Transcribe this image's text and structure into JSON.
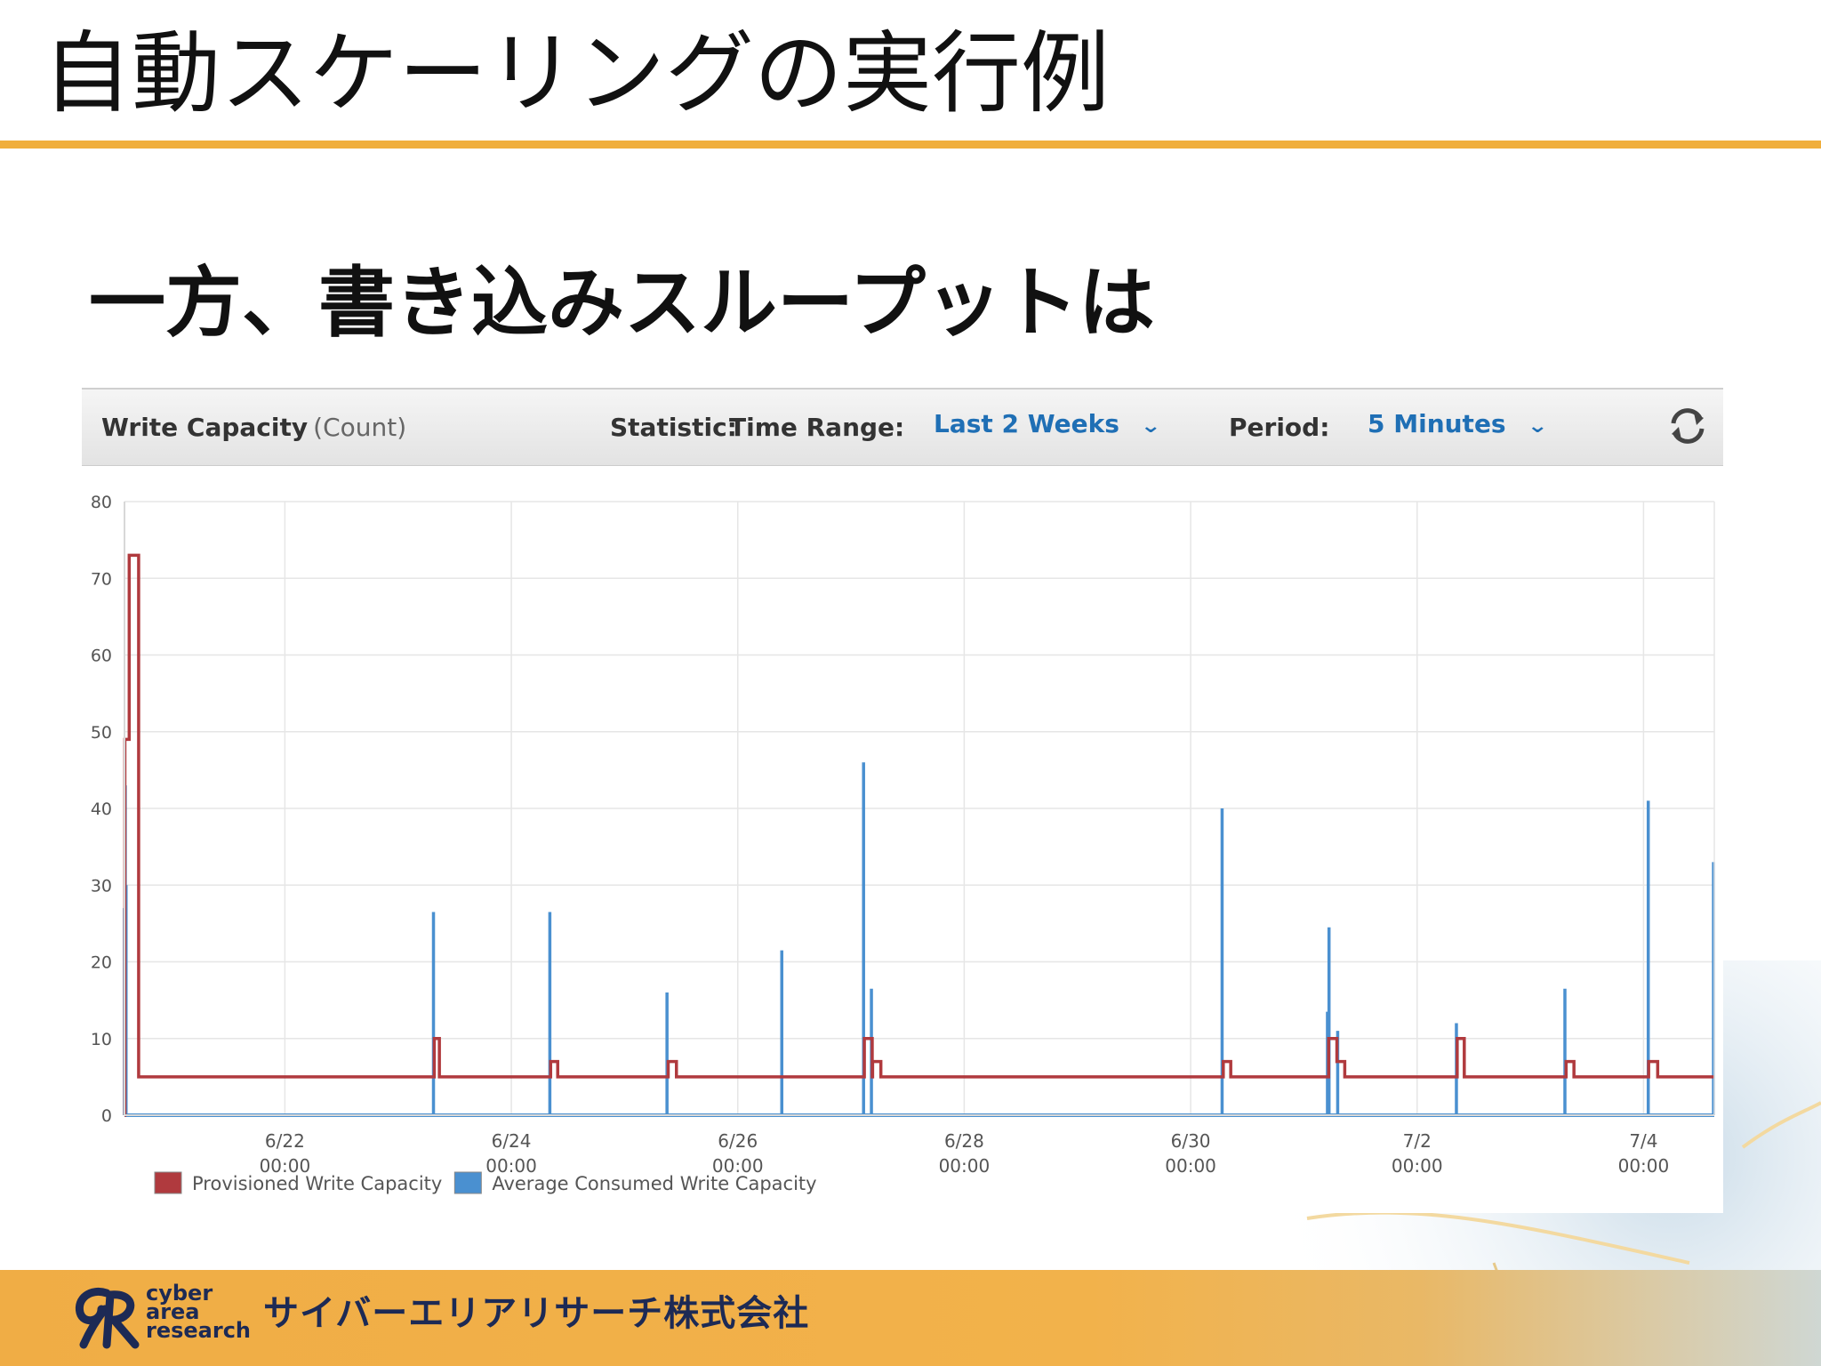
{
  "slide": {
    "title": "自動スケーリングの実行例",
    "subtitle": "一方、書き込みスループットは"
  },
  "panel": {
    "metric_name": "Write Capacity",
    "metric_unit": "(Count)",
    "statistic_label": "Statistic:",
    "time_range_label": "Time Range:",
    "time_range_value": "Last 2 Weeks",
    "period_label": "Period:",
    "period_value": "5 Minutes",
    "refresh_icon": "refresh-icon",
    "caret_icon": "chevron-down-icon"
  },
  "chart_data": {
    "type": "line",
    "line_shape": "step",
    "title": "Write Capacity (Count)",
    "xlabel": "",
    "ylabel": "",
    "ylim": [
      0,
      80
    ],
    "yticks": [
      0,
      10,
      20,
      30,
      40,
      50,
      60,
      70,
      80
    ],
    "xlim": [
      "2017-06-20 14:00",
      "2017-07-04 15:00"
    ],
    "xticks": [
      {
        "at": "2017-06-22 00:00",
        "line1": "6/22",
        "line2": "00:00"
      },
      {
        "at": "2017-06-24 00:00",
        "line1": "6/24",
        "line2": "00:00"
      },
      {
        "at": "2017-06-26 00:00",
        "line1": "6/26",
        "line2": "00:00"
      },
      {
        "at": "2017-06-28 00:00",
        "line1": "6/28",
        "line2": "00:00"
      },
      {
        "at": "2017-06-30 00:00",
        "line1": "6/30",
        "line2": "00:00"
      },
      {
        "at": "2017-07-02 00:00",
        "line1": "7/2",
        "line2": "00:00"
      },
      {
        "at": "2017-07-04 00:00",
        "line1": "7/4",
        "line2": "00:00"
      }
    ],
    "grid": true,
    "legend": "bottom-left",
    "series": [
      {
        "name": "Provisioned Write Capacity",
        "color": "#b03a3e",
        "points": [
          [
            "2017-06-20 14:00",
            0
          ],
          [
            "2017-06-20 14:05",
            49
          ],
          [
            "2017-06-20 15:00",
            73
          ],
          [
            "2017-06-20 17:00",
            5
          ],
          [
            "2017-06-23 07:35",
            5
          ],
          [
            "2017-06-23 07:40",
            10
          ],
          [
            "2017-06-23 08:45",
            5
          ],
          [
            "2017-06-24 08:15",
            5
          ],
          [
            "2017-06-24 08:20",
            7
          ],
          [
            "2017-06-24 09:50",
            5
          ],
          [
            "2017-06-25 09:10",
            5
          ],
          [
            "2017-06-25 09:15",
            7
          ],
          [
            "2017-06-25 11:00",
            5
          ],
          [
            "2017-06-27 02:45",
            5
          ],
          [
            "2017-06-27 02:50",
            10
          ],
          [
            "2017-06-27 04:30",
            5
          ],
          [
            "2017-06-27 04:35",
            7
          ],
          [
            "2017-06-27 06:20",
            5
          ],
          [
            "2017-06-30 06:50",
            5
          ],
          [
            "2017-06-30 06:55",
            7
          ],
          [
            "2017-06-30 08:30",
            5
          ],
          [
            "2017-07-01 05:10",
            5
          ],
          [
            "2017-07-01 05:15",
            10
          ],
          [
            "2017-07-01 07:00",
            7
          ],
          [
            "2017-07-01 08:40",
            5
          ],
          [
            "2017-07-02 08:25",
            5
          ],
          [
            "2017-07-02 08:30",
            10
          ],
          [
            "2017-07-02 10:00",
            5
          ],
          [
            "2017-07-03 07:30",
            5
          ],
          [
            "2017-07-03 07:35",
            7
          ],
          [
            "2017-07-03 09:15",
            5
          ],
          [
            "2017-07-04 01:00",
            5
          ],
          [
            "2017-07-04 01:05",
            7
          ],
          [
            "2017-07-04 03:00",
            5
          ],
          [
            "2017-07-04 15:00",
            5
          ]
        ]
      },
      {
        "name": "Average Consumed Write Capacity",
        "color": "#4a90d0",
        "baseline": 0,
        "spikes": [
          [
            "2017-06-20 14:00",
            27
          ],
          [
            "2017-06-20 14:10",
            43
          ],
          [
            "2017-06-20 14:20",
            30
          ],
          [
            "2017-06-23 07:30",
            26.5
          ],
          [
            "2017-06-24 08:10",
            26.5
          ],
          [
            "2017-06-25 09:00",
            16
          ],
          [
            "2017-06-26 09:20",
            21.5
          ],
          [
            "2017-06-27 02:40",
            46
          ],
          [
            "2017-06-27 04:20",
            16.5
          ],
          [
            "2017-06-30 06:40",
            40
          ],
          [
            "2017-07-01 05:00",
            13.5
          ],
          [
            "2017-07-01 05:20",
            24.5
          ],
          [
            "2017-07-01 07:10",
            11
          ],
          [
            "2017-07-02 08:20",
            12
          ],
          [
            "2017-07-03 07:20",
            16.5
          ],
          [
            "2017-07-04 01:00",
            41
          ],
          [
            "2017-07-04 14:50",
            33
          ]
        ]
      }
    ]
  },
  "footer": {
    "logo_words": [
      "cyber",
      "area",
      "research"
    ],
    "company_name": "サイバーエリアリサーチ株式会社"
  }
}
